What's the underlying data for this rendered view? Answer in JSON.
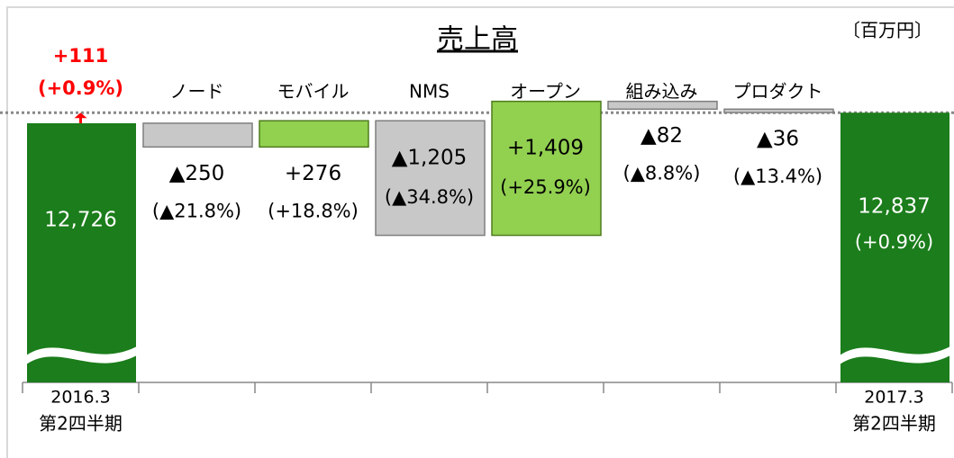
{
  "chart_data": {
    "type": "waterfall",
    "title": "売上高",
    "unit_label": "〔百万円〕",
    "categories": [
      [
        "2016.3",
        "第2四半期"
      ],
      "ノード",
      "モバイル",
      "NMS",
      "オープン",
      "組み込み",
      "プロダクト",
      [
        "2017.3",
        "第2四半期"
      ]
    ],
    "values": [
      12726,
      -250,
      276,
      -1205,
      1409,
      -82,
      -36,
      12837
    ],
    "value_labels": [
      "12,726",
      "▲250",
      "+276",
      "▲1,205",
      "+1,409",
      "▲82",
      "▲36",
      "12,837"
    ],
    "pct_labels": [
      null,
      "(▲21.8%)",
      "(+18.8%)",
      "(▲34.8%)",
      "(+25.9%)",
      "(▲8.8%)",
      "(▲13.4%)",
      "(+0.9%)"
    ],
    "total_color": "#1b7d1b",
    "increase_color": "#92d050",
    "decrease_color": "#c8c8c8",
    "annotation": {
      "text": "+111",
      "subtext": "(+0.9%)",
      "color": "#ff0000"
    },
    "ylim": [
      10000,
      13000
    ]
  }
}
